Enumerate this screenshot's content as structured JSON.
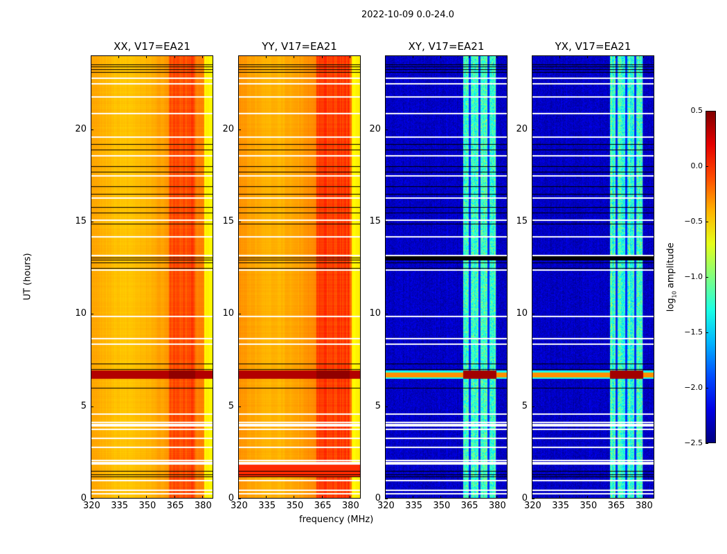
{
  "suptitle": "2022-10-09 0.0-24.0",
  "chart_data": {
    "type": "heatmap",
    "title": "2022-10-09 0.0-24.0",
    "xlabel": "frequency (MHz)",
    "ylabel": "UT (hours)",
    "xlim": [
      320,
      386
    ],
    "ylim": [
      0,
      24
    ],
    "xticks": [
      320,
      335,
      350,
      365,
      380
    ],
    "yticks": [
      0,
      5,
      10,
      15,
      20
    ],
    "colormap": "jet",
    "colorbar": {
      "label": "log10 amplitude",
      "label_main": "log",
      "label_sub": "10",
      "label_rest": " amplitude",
      "range": [
        -2.5,
        0.5
      ],
      "ticks": [
        "0.5",
        "0.0",
        "−0.5",
        "−1.0",
        "−1.5",
        "−2.0",
        "−2.5"
      ],
      "tick_values": [
        0.5,
        0.0,
        -0.5,
        -1.0,
        -1.5,
        -2.0,
        -2.5
      ]
    },
    "panels": [
      {
        "title": "XX, V17=EA21",
        "kind": "parallel",
        "base_log_amp": -0.35,
        "rfi_band_mhz": [
          362,
          376
        ],
        "rfi_log_amp": -0.1
      },
      {
        "title": "YY, V17=EA21",
        "kind": "parallel",
        "base_log_amp": -0.3,
        "rfi_band_mhz": [
          362,
          380
        ],
        "rfi_log_amp": -0.05
      },
      {
        "title": "XY, V17=EA21",
        "kind": "cross",
        "base_log_amp": -2.3,
        "rfi_band_mhz": [
          362,
          380
        ],
        "rfi_log_amp": -1.2
      },
      {
        "title": "YX, V17=EA21",
        "kind": "cross",
        "base_log_amp": -2.3,
        "rfi_band_mhz": [
          362,
          380
        ],
        "rfi_log_amp": -1.2
      }
    ],
    "flagged_hours_white": [
      0.3,
      0.5,
      1.0,
      2.0,
      2.1,
      2.8,
      3.3,
      3.8,
      4.05,
      4.15,
      4.6,
      8.4,
      8.7,
      9.9,
      12.4,
      13.2,
      14.2,
      15.1,
      16.3,
      17.5,
      18.6,
      19.6,
      20.9,
      21.8,
      22.5,
      22.8
    ],
    "flagged_hours_black": [
      1.2,
      1.3,
      1.5,
      6.0,
      7.0,
      7.3,
      12.5,
      12.8,
      12.95,
      13.05,
      14.9,
      15.5,
      15.8,
      16.5,
      16.9,
      17.7,
      18.0,
      18.9,
      19.2,
      23.1,
      23.25,
      23.4,
      23.5
    ],
    "strong_rfi_hours": [
      6.5,
      6.95
    ]
  }
}
